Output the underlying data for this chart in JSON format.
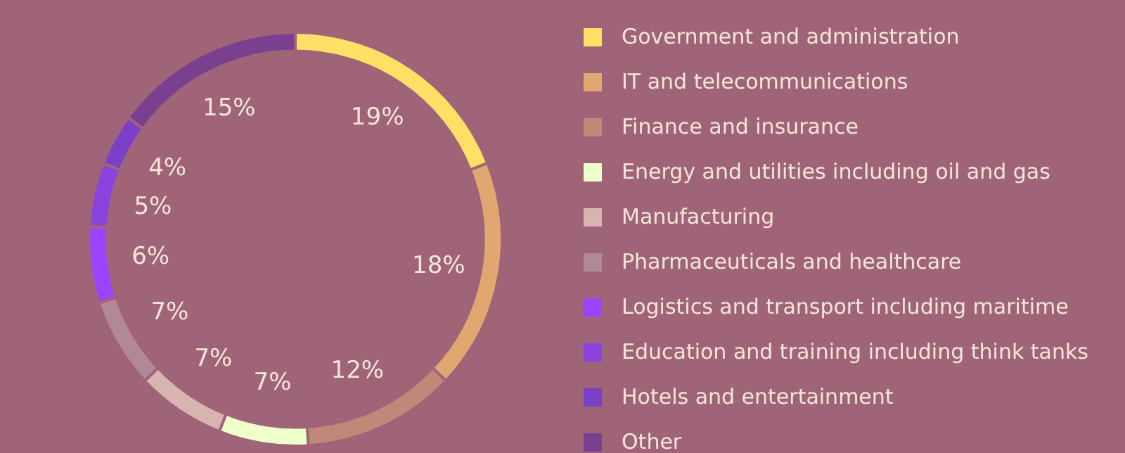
{
  "chart_data": {
    "type": "donut",
    "categories": [
      "Government and administration",
      "IT and telecommunications",
      "Finance and insurance",
      "Energy and utilities including oil and gas",
      "Manufacturing",
      "Pharmaceuticals and healthcare",
      "Logistics and transport including maritime",
      "Education and training including think tanks",
      "Hotels and entertainment",
      "Other"
    ],
    "values": [
      19,
      18,
      12,
      7,
      7,
      7,
      6,
      5,
      4,
      15
    ],
    "value_labels": [
      "19%",
      "18%",
      "12%",
      "7%",
      "7%",
      "7%",
      "6%",
      "5%",
      "4%",
      "15%"
    ],
    "colors": [
      "#ffe066",
      "#e0a870",
      "#c08878",
      "#eeffcc",
      "#d8b4b0",
      "#b08898",
      "#9a44ff",
      "#8a44dd",
      "#7a40c8",
      "#7a4090"
    ],
    "legend": "right"
  }
}
